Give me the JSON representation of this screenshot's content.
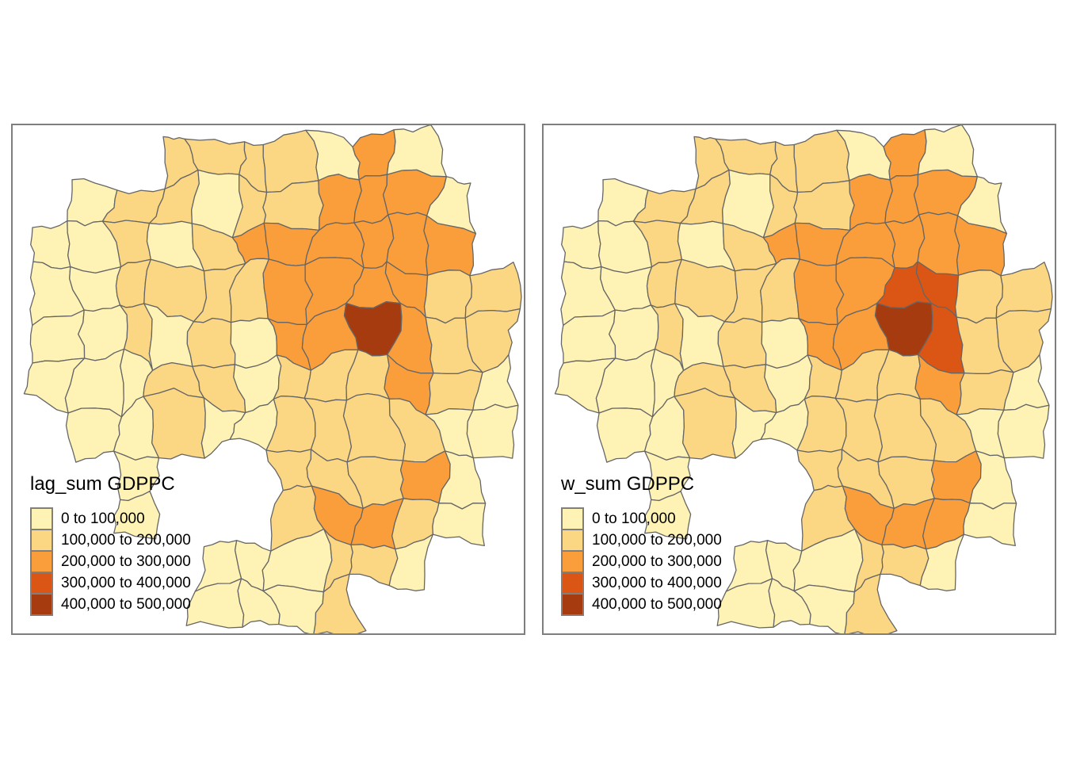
{
  "figure": {
    "background": "#ffffff"
  },
  "panels": [
    {
      "title": "lag_sum GDPPC"
    },
    {
      "title": "w_sum GDPPC"
    }
  ],
  "legend": {
    "swatch_border_color": "#7f7f7f",
    "classes": [
      {
        "label": "0 to 100,000",
        "color": "#FEF3B5"
      },
      {
        "label": "100,000 to 200,000",
        "color": "#FBD683"
      },
      {
        "label": "200,000 to 300,000",
        "color": "#F99E3B"
      },
      {
        "label": "300,000 to 400,000",
        "color": "#DB5615"
      },
      {
        "label": "400,000 to 500,000",
        "color": "#A63B10"
      }
    ]
  },
  "map_data": {
    "type": "choropleth",
    "class_breaks": [
      0,
      100000,
      200000,
      300000,
      400000,
      500000
    ],
    "palette": [
      "#FEF3B5",
      "#FBD683",
      "#F99E3B",
      "#DB5615",
      "#A63B10"
    ],
    "region_border_color": "#666666",
    "panel_border_color": "#7e7e7e",
    "grid_note": "rows north to south; digit = class index 0-4; '.' = outside province",
    "grids": {
      "left": [
        "...1111020..",
        ".0110112220.",
        "00101222222.",
        "001111222211",
        "001010224211",
        "000110111210",
        ".00100111100",
        "..0...11120.",
        "..0...12210.",
        "....000110..",
        "....0001...."
      ],
      "right": [
        "...1111020..",
        ".0110112220.",
        "00101222222.",
        "001111223311",
        "001010224311",
        "000110111210",
        ".00100111100",
        "..0...11120.",
        "..0...12220.",
        "....000110..",
        "....0001...."
      ]
    }
  }
}
